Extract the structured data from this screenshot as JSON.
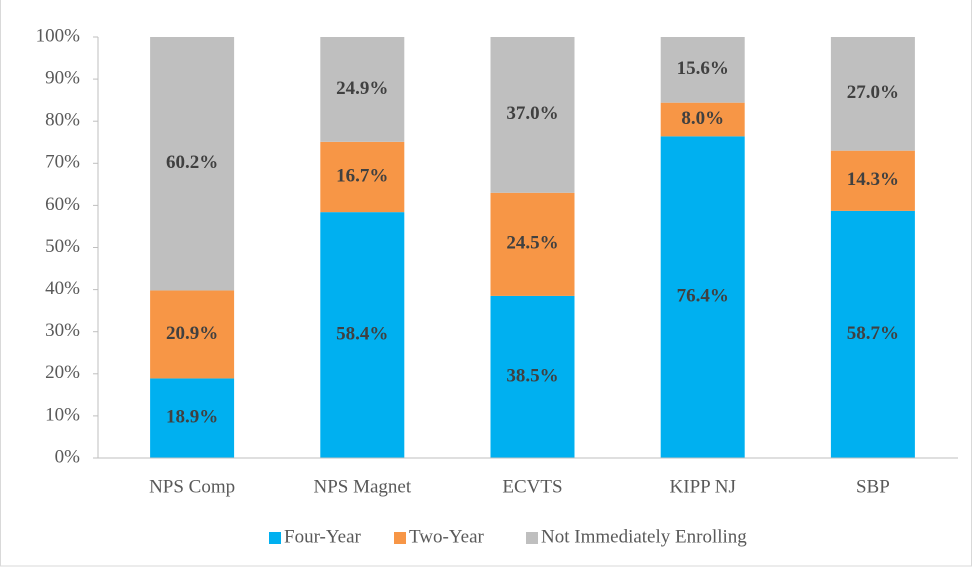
{
  "chart_data": {
    "type": "stacked_bar",
    "categories": [
      "NPS Comp",
      "NPS Magnet",
      "ECVTS",
      "KIPP NJ",
      "SBP"
    ],
    "series": [
      {
        "name": "Four-Year",
        "color": "#00b0f0",
        "values": [
          18.9,
          58.4,
          38.5,
          76.4,
          58.7
        ],
        "value_labels": [
          "18.9%",
          "58.4%",
          "38.5%",
          "76.4%",
          "58.7%"
        ]
      },
      {
        "name": "Two-Year",
        "color": "#f79646",
        "values": [
          20.9,
          16.7,
          24.5,
          8.0,
          14.3
        ],
        "value_labels": [
          "20.9%",
          "16.7%",
          "24.5%",
          "8.0%",
          "14.3%"
        ]
      },
      {
        "name": "Not Immediately Enrolling",
        "color": "#bfbfbf",
        "values": [
          60.2,
          24.9,
          37.0,
          15.6,
          27.0
        ],
        "value_labels": [
          "60.2%",
          "24.9%",
          "37.0%",
          "15.6%",
          "27.0%"
        ]
      }
    ],
    "ylim": [
      0,
      100
    ],
    "yticks": [
      {
        "value": 0,
        "label": "0%"
      },
      {
        "value": 10,
        "label": "10%"
      },
      {
        "value": 20,
        "label": "20%"
      },
      {
        "value": 30,
        "label": "30%"
      },
      {
        "value": 40,
        "label": "40%"
      },
      {
        "value": 50,
        "label": "50%"
      },
      {
        "value": 60,
        "label": "60%"
      },
      {
        "value": 70,
        "label": "70%"
      },
      {
        "value": 80,
        "label": "80%"
      },
      {
        "value": 90,
        "label": "90%"
      },
      {
        "value": 100,
        "label": "100%"
      }
    ],
    "legend": "bottom"
  }
}
